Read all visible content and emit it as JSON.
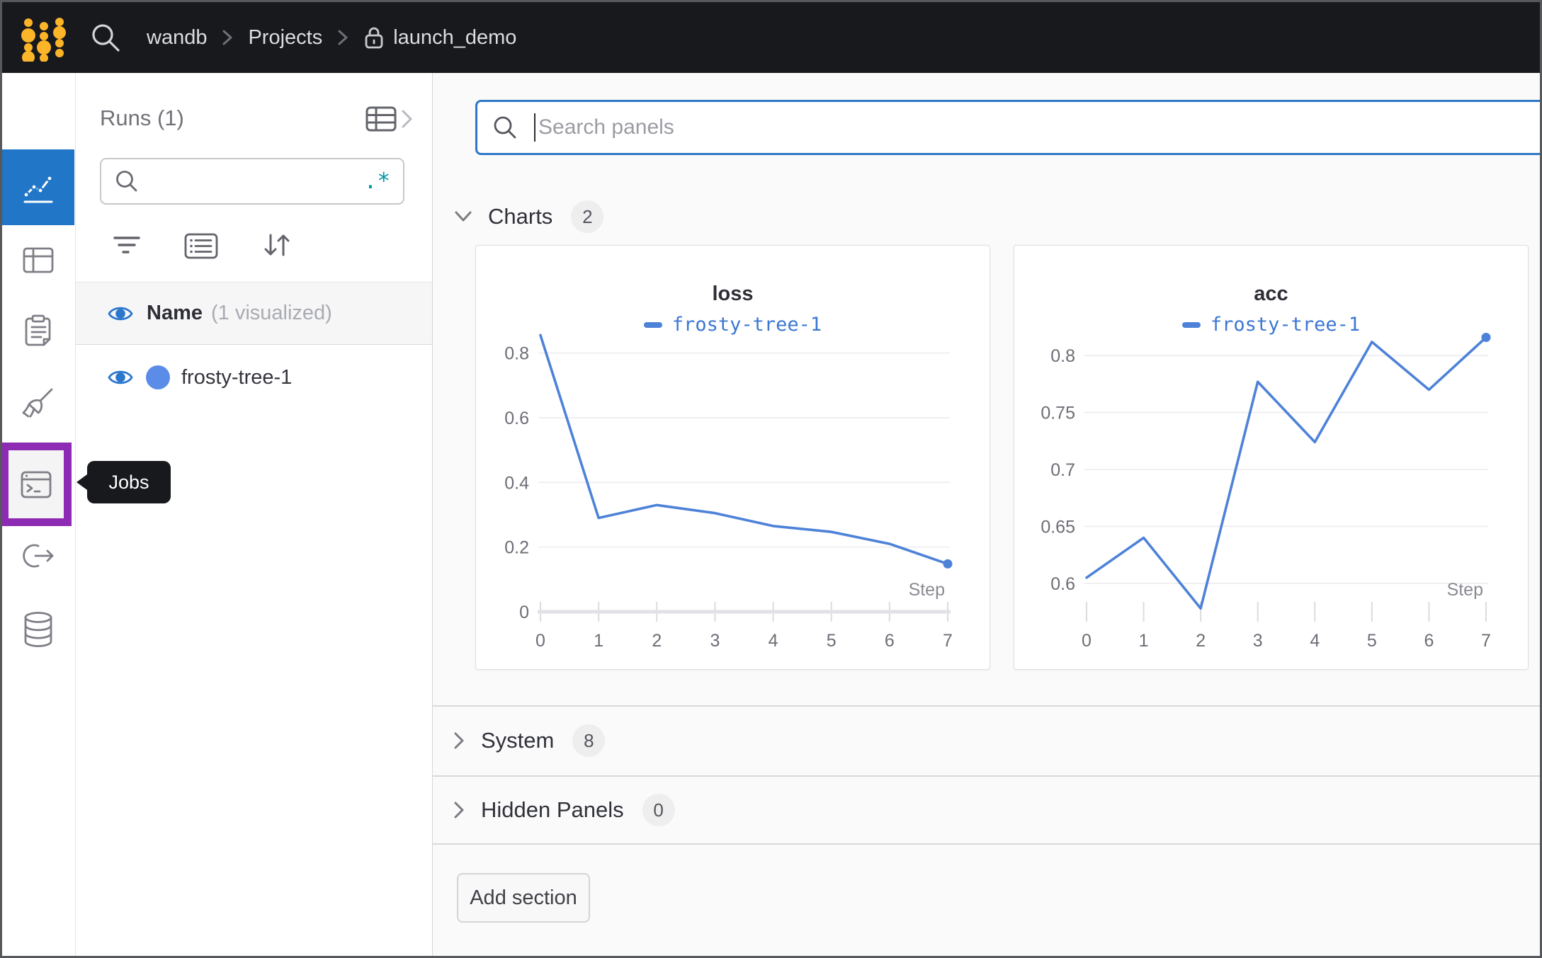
{
  "colors": {
    "topbar_bg": "#17191d",
    "logo_yellow": "#fcb429",
    "rail_selected_blue": "#2176c7",
    "highlight_purple": "#8e2bb4",
    "accent_blue": "#2e78c8",
    "line_blue": "#4d82d8",
    "eye_blue": "#2b77cc",
    "run_dot_blue": "#5a8ce8",
    "regex_teal": "#0097a7"
  },
  "topbar": {
    "breadcrumb": {
      "items": [
        "wandb",
        "Projects",
        "launch_demo"
      ]
    }
  },
  "rail": {
    "items": [
      {
        "id": "overview",
        "icon": "info-icon"
      },
      {
        "id": "charts",
        "icon": "chart-icon",
        "selected": true
      },
      {
        "id": "tables",
        "icon": "table-icon"
      },
      {
        "id": "reports",
        "icon": "clipboard-icon"
      },
      {
        "id": "sweeps",
        "icon": "broom-icon"
      },
      {
        "id": "jobs",
        "icon": "terminal-icon",
        "highlighted": true
      },
      {
        "id": "automations",
        "icon": "link-arrow-icon"
      },
      {
        "id": "artifacts",
        "icon": "database-icon"
      }
    ],
    "tooltip_label": "Jobs"
  },
  "runs_panel": {
    "title": "Runs (1)",
    "search": {
      "value": "",
      "placeholder": "",
      "regex_icon": ".*"
    },
    "header": {
      "name": "Name",
      "visualized": "(1 visualized)"
    },
    "runs": [
      {
        "name": "frosty-tree-1",
        "visible": true
      }
    ]
  },
  "main": {
    "search": {
      "placeholder": "Search panels",
      "value": ""
    },
    "sections": [
      {
        "label": "Charts",
        "count": "2",
        "expanded": true
      },
      {
        "label": "System",
        "count": "8",
        "expanded": false
      },
      {
        "label": "Hidden Panels",
        "count": "0",
        "expanded": false
      }
    ],
    "add_section_label": "Add section"
  },
  "chart_data": [
    {
      "type": "line",
      "title": "loss",
      "xlabel": "Step",
      "x": [
        0,
        1,
        2,
        3,
        4,
        5,
        6,
        7
      ],
      "series": [
        {
          "name": "frosty-tree-1",
          "color": "#4d82d8",
          "values": [
            0.855,
            0.29,
            0.33,
            0.305,
            0.265,
            0.247,
            0.21,
            0.148
          ]
        }
      ],
      "ylim": [
        0,
        0.88
      ],
      "yticks": [
        [
          0,
          "0"
        ],
        [
          0.2,
          "0.2"
        ],
        [
          0.4,
          "0.4"
        ],
        [
          0.6,
          "0.6"
        ],
        [
          0.8,
          "0.8"
        ]
      ],
      "baseline": true,
      "end_dot": true,
      "grid": true,
      "legend_position": "top"
    },
    {
      "type": "line",
      "title": "acc",
      "xlabel": "Step",
      "x": [
        0,
        1,
        2,
        3,
        4,
        5,
        6,
        7
      ],
      "series": [
        {
          "name": "frosty-tree-1",
          "color": "#4d82d8",
          "values": [
            0.605,
            0.64,
            0.578,
            0.777,
            0.724,
            0.812,
            0.77,
            0.816
          ]
        }
      ],
      "ylim": [
        0.575,
        0.825
      ],
      "yticks": [
        [
          0.6,
          "0.6"
        ],
        [
          0.65,
          "0.65"
        ],
        [
          0.7,
          "0.7"
        ],
        [
          0.75,
          "0.75"
        ],
        [
          0.8,
          "0.8"
        ]
      ],
      "baseline": false,
      "end_dot": true,
      "grid": true,
      "legend_position": "top"
    }
  ]
}
